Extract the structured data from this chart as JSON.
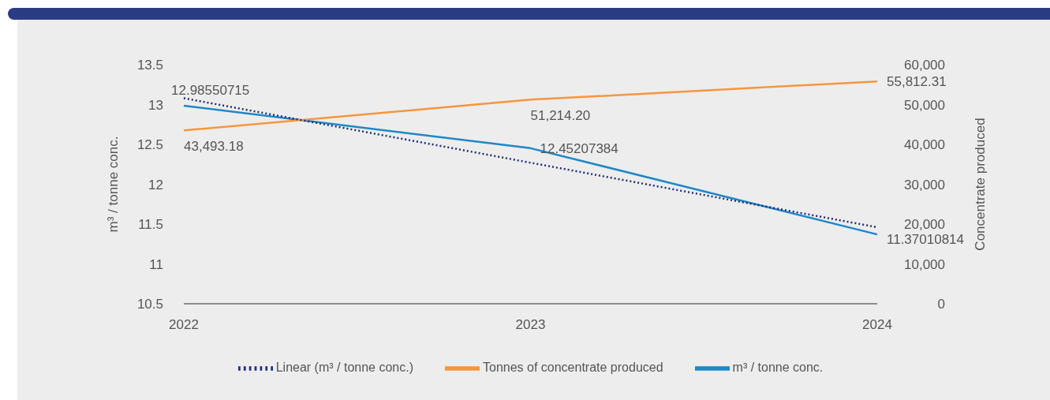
{
  "chart_data": {
    "type": "line",
    "categories": [
      "2022",
      "2023",
      "2024"
    ],
    "ylabel": "m³ / tonne conc.",
    "y2label": "Concentrate produced",
    "ylim": [
      10.5,
      13.5
    ],
    "yticks": [
      10.5,
      11,
      11.5,
      12,
      12.5,
      13,
      13.5
    ],
    "y2lim": [
      0,
      60000
    ],
    "y2ticks": [
      {
        "value": 0,
        "label": "0"
      },
      {
        "value": 10000,
        "label": "10,000"
      },
      {
        "value": 20000,
        "label": "20,000"
      },
      {
        "value": 30000,
        "label": "30,000"
      },
      {
        "value": 40000,
        "label": "40,000"
      },
      {
        "value": 50000,
        "label": "50,000"
      },
      {
        "value": 60000,
        "label": "60,000"
      }
    ],
    "legend": "bottom",
    "series": [
      {
        "name": "m³ / tonne conc.",
        "color": "#1f87c8",
        "values": [
          12.98550715,
          12.45207384,
          11.37010814
        ],
        "value_labels": [
          "12.98550715",
          "12.45207384",
          "11.37010814"
        ],
        "axis": "y",
        "line_style": "solid"
      },
      {
        "name": "Tonnes of concentrate produced",
        "color": "#f7963c",
        "values": [
          43493.18,
          51214.2,
          55812.31
        ],
        "value_labels": [
          "43,493.18",
          "51,214.20",
          "55,812.31"
        ],
        "axis": "y2",
        "line_style": "solid"
      },
      {
        "name": "Linear (m³ / tonne conc.)",
        "type": "line",
        "color": "#1f2f7a",
        "values": [
          13.08,
          12.27,
          11.46
        ],
        "axis": "y",
        "line_style": "dotted"
      }
    ]
  }
}
